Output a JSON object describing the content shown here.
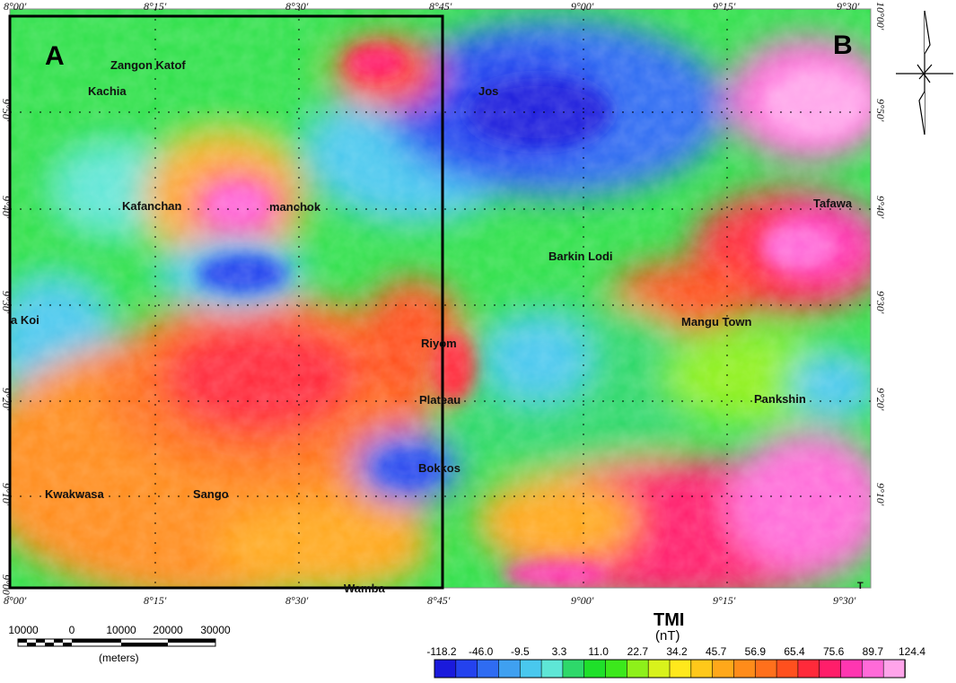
{
  "panels": [
    {
      "letter": "A"
    },
    {
      "letter": "B"
    }
  ],
  "top_longitude_labels": [
    "8°00'",
    "8°15'",
    "8°30'",
    "8°45'",
    "9°00'",
    "9°15'",
    "9°30'"
  ],
  "bottom_longitude_labels": [
    "8°00'",
    "8°15'",
    "8°30'",
    "8°45'",
    "9°00'",
    "9°15'",
    "9°30'"
  ],
  "left_latitude_labels": [
    "9°50'",
    "9°40'",
    "9°30'",
    "9°20'",
    "9°10'",
    "9°00'"
  ],
  "right_latitude_labels": [
    "10°00'",
    "9°50'",
    "9°40'",
    "9°30'",
    "9°20'",
    "9°10'"
  ],
  "places": [
    {
      "name": "Zangon Katof"
    },
    {
      "name": "Kachia"
    },
    {
      "name": "Jos"
    },
    {
      "name": "Kafanchan"
    },
    {
      "name": "manchok"
    },
    {
      "name": "Tafawa"
    },
    {
      "name": "Barkin Lodi"
    },
    {
      "name": "a Koi"
    },
    {
      "name": "Mangu Town"
    },
    {
      "name": "Riyom"
    },
    {
      "name": "Plateau"
    },
    {
      "name": "Pankshin"
    },
    {
      "name": "Bokkos"
    },
    {
      "name": "Kwakwasa"
    },
    {
      "name": "Sango"
    },
    {
      "name": "Wamba"
    },
    {
      "name": "T"
    }
  ],
  "legend": {
    "title": "TMI",
    "unit": "(nT)",
    "values": [
      "-118.2",
      "-46.0",
      "-9.5",
      "3.3",
      "11.0",
      "22.7",
      "34.2",
      "45.7",
      "56.9",
      "65.4",
      "75.6",
      "89.7",
      "124.4"
    ],
    "colors": [
      "#1a1adc",
      "#2442ee",
      "#2f6cf2",
      "#3fa0f0",
      "#49c8ee",
      "#5ee6d6",
      "#2ed86a",
      "#1fe02a",
      "#3ce81c",
      "#8ef01a",
      "#d8f21c",
      "#ffe81c",
      "#ffc81a",
      "#ffa81a",
      "#ff8c1a",
      "#ff701c",
      "#ff501e",
      "#ff2a3a",
      "#ff1e6a",
      "#ff36b0",
      "#ff6ad8",
      "#ffa4ea"
    ]
  },
  "scale_bar": {
    "labels": [
      "10000",
      "0",
      "10000",
      "20000",
      "30000"
    ],
    "unit": "(meters)"
  },
  "north_arrow": {
    "icon": "north-arrow-icon"
  }
}
